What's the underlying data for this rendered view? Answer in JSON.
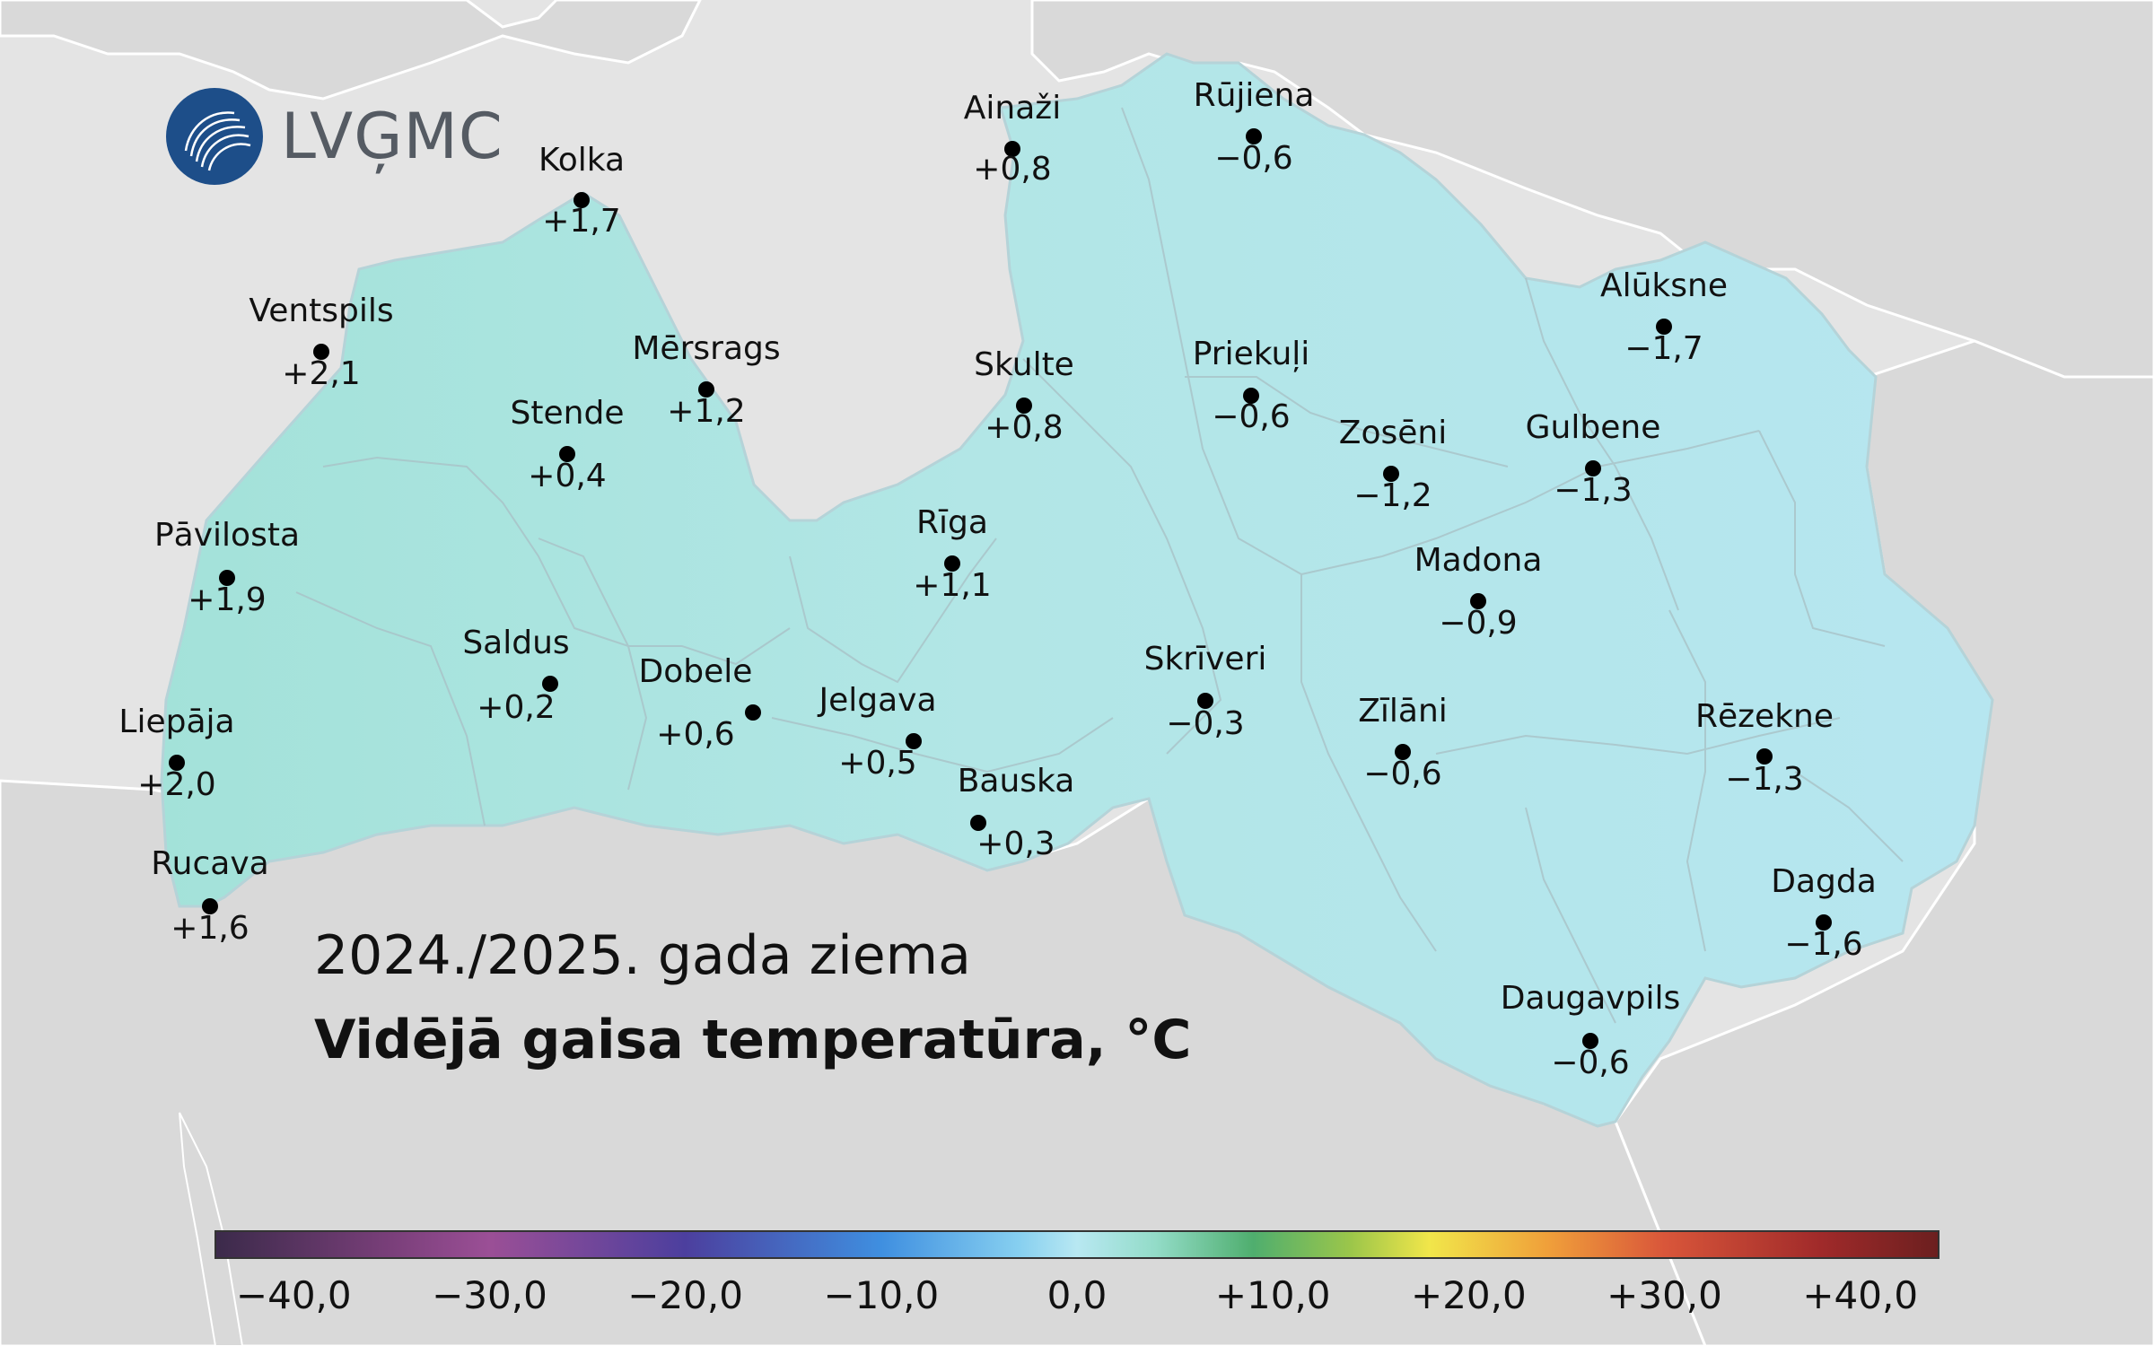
{
  "logo": {
    "text": "LVĢMC",
    "icon": "lvgmc-logo-icon",
    "color": "#1d4e89"
  },
  "title": {
    "line1": "2024./2025. gada ziema",
    "line2": "Vidējā gaisa temperatūra, °C"
  },
  "colors": {
    "sea": "#e4e4e4",
    "land_outside": "#d9d9d9",
    "latvia_west": "#a3e2d9",
    "latvia_east": "#b6e6f0",
    "dot": "#000000"
  },
  "stations": [
    {
      "name": "Kolka",
      "value": "+1,7"
    },
    {
      "name": "Ventspils",
      "value": "+2,1"
    },
    {
      "name": "Mērsrags",
      "value": "+1,2"
    },
    {
      "name": "Stende",
      "value": "+0,4"
    },
    {
      "name": "Pāvilosta",
      "value": "+1,9"
    },
    {
      "name": "Saldus",
      "value": "+0,2"
    },
    {
      "name": "Liepāja",
      "value": "+2,0"
    },
    {
      "name": "Rucava",
      "value": "+1,6"
    },
    {
      "name": "Dobele",
      "value": "+0,6"
    },
    {
      "name": "Jelgava",
      "value": "+0,5"
    },
    {
      "name": "Bauska",
      "value": "+0,3"
    },
    {
      "name": "Rīga",
      "value": "+1,1"
    },
    {
      "name": "Skulte",
      "value": "+0,8"
    },
    {
      "name": "Ainaži",
      "value": "+0,8"
    },
    {
      "name": "Rūjiena",
      "value": "−0,6"
    },
    {
      "name": "Priekuļi",
      "value": "−0,6"
    },
    {
      "name": "Zosēni",
      "value": "−1,2"
    },
    {
      "name": "Gulbene",
      "value": "−1,3"
    },
    {
      "name": "Alūksne",
      "value": "−1,7"
    },
    {
      "name": "Madona",
      "value": "−0,9"
    },
    {
      "name": "Skrīveri",
      "value": "−0,3"
    },
    {
      "name": "Zīlāni",
      "value": "−0,6"
    },
    {
      "name": "Rēzekne",
      "value": "−1,3"
    },
    {
      "name": "Dagda",
      "value": "−1,6"
    },
    {
      "name": "Daugavpils",
      "value": "−0,6"
    }
  ],
  "colorbar": {
    "ticks": [
      "−40,0",
      "−30,0",
      "−20,0",
      "−10,0",
      "0,0",
      "+10,0",
      "+20,0",
      "+30,0",
      "+40,0"
    ],
    "min": -44,
    "max": 44,
    "tick_values": [
      -40,
      -30,
      -20,
      -10,
      0,
      10,
      20,
      30,
      40
    ],
    "stops": [
      {
        "value": -44,
        "color": "#3b2a4a"
      },
      {
        "value": -35,
        "color": "#7a3f7a"
      },
      {
        "value": -30,
        "color": "#9b4f96"
      },
      {
        "value": -20,
        "color": "#4c3f9e"
      },
      {
        "value": -10,
        "color": "#3f8fe0"
      },
      {
        "value": -3,
        "color": "#86cff0"
      },
      {
        "value": 0,
        "color": "#b8e8f2"
      },
      {
        "value": 4,
        "color": "#93dcc8"
      },
      {
        "value": 9,
        "color": "#4fae6e"
      },
      {
        "value": 14,
        "color": "#9cc64a"
      },
      {
        "value": 18,
        "color": "#f1e64a"
      },
      {
        "value": 24,
        "color": "#f0a03a"
      },
      {
        "value": 30,
        "color": "#d9563a"
      },
      {
        "value": 38,
        "color": "#a02a2a"
      },
      {
        "value": 44,
        "color": "#6b1f1f"
      }
    ]
  }
}
